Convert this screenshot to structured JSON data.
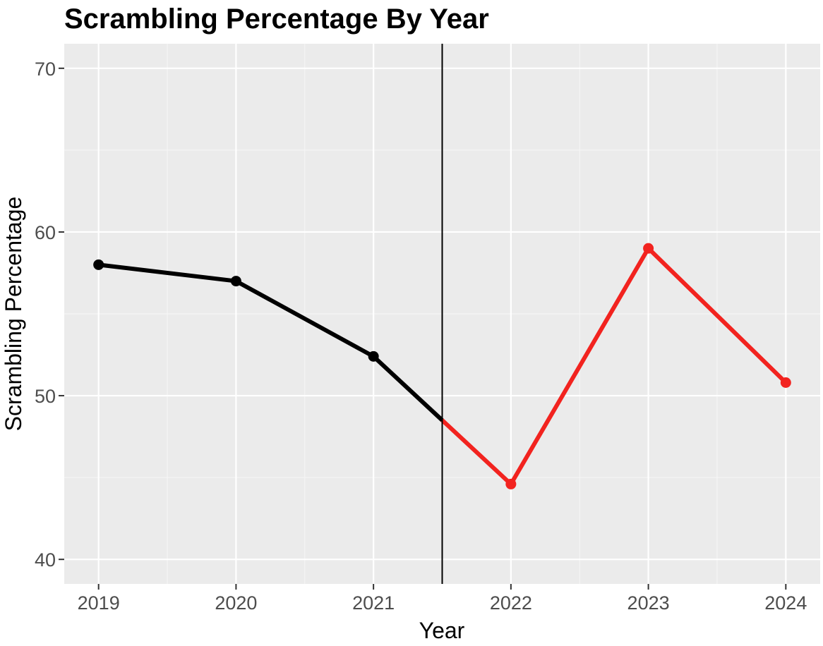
{
  "chart_data": {
    "type": "line",
    "title": "Scrambling Percentage By Year",
    "xlabel": "Year",
    "ylabel": "Scrambling Percentage",
    "x": [
      2019,
      2020,
      2021,
      2022,
      2023,
      2024
    ],
    "xlim": [
      2018.75,
      2024.25
    ],
    "ylim": [
      38.5,
      71.5
    ],
    "y_ticks": [
      40,
      50,
      60,
      70
    ],
    "x_ticks": [
      2019,
      2020,
      2021,
      2022,
      2023,
      2024
    ],
    "grid": true,
    "legend": "none",
    "vline_x": 2021.5,
    "series": [
      {
        "values": [
          58.0,
          57.0,
          52.4
        ],
        "x": [
          2019,
          2020,
          2021
        ],
        "color": "#000000"
      },
      {
        "values": [
          44.6,
          59.0,
          50.8
        ],
        "x": [
          2022,
          2023,
          2024
        ],
        "color": "#f2231f"
      }
    ],
    "colors": {
      "panel_background": "#ebebeb",
      "grid_major": "#ffffff",
      "grid_minor": "#f5f5f5",
      "vline": "#000000",
      "tick_label": "#4d4d4d"
    }
  }
}
